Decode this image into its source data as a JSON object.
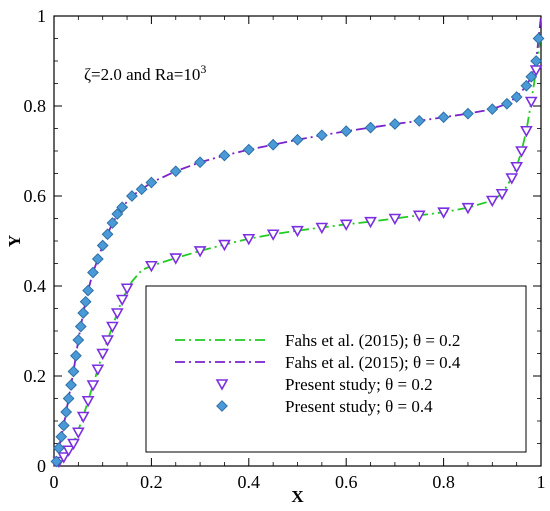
{
  "chart_data": {
    "type": "line",
    "annotation": {
      "prefix": "ζ=2.0 and Ra=10",
      "exponent": "3"
    },
    "xlabel": "X",
    "ylabel": "Y",
    "xlim": [
      0,
      1
    ],
    "ylim": [
      0,
      1
    ],
    "xticks": [
      0,
      0.2,
      0.4,
      0.6,
      0.8,
      1
    ],
    "xtick_labels": [
      "0",
      "0.2",
      "0.4",
      "0.6",
      "0.8",
      "1"
    ],
    "yticks": [
      0,
      0.2,
      0.4,
      0.6,
      0.8,
      1
    ],
    "ytick_labels": [
      "0",
      "0.2",
      "0.4",
      "0.6",
      "0.8",
      "1"
    ],
    "grid": false,
    "legend_position": "lower-right",
    "series": [
      {
        "name": "Fahs et al. (2015); θ = 0.2",
        "kind": "line",
        "line_style": "dash-dot",
        "color": "#22cc22",
        "points": [
          [
            0.0,
            0.0
          ],
          [
            0.02,
            0.02
          ],
          [
            0.04,
            0.05
          ],
          [
            0.06,
            0.11
          ],
          [
            0.08,
            0.18
          ],
          [
            0.1,
            0.25
          ],
          [
            0.12,
            0.31
          ],
          [
            0.14,
            0.37
          ],
          [
            0.16,
            0.41
          ],
          [
            0.18,
            0.435
          ],
          [
            0.2,
            0.445
          ],
          [
            0.25,
            0.462
          ],
          [
            0.3,
            0.478
          ],
          [
            0.35,
            0.492
          ],
          [
            0.4,
            0.505
          ],
          [
            0.45,
            0.515
          ],
          [
            0.5,
            0.523
          ],
          [
            0.55,
            0.53
          ],
          [
            0.6,
            0.537
          ],
          [
            0.65,
            0.543
          ],
          [
            0.7,
            0.55
          ],
          [
            0.75,
            0.557
          ],
          [
            0.8,
            0.564
          ],
          [
            0.85,
            0.574
          ],
          [
            0.9,
            0.59
          ],
          [
            0.92,
            0.605
          ],
          [
            0.94,
            0.64
          ],
          [
            0.95,
            0.665
          ],
          [
            0.96,
            0.7
          ],
          [
            0.97,
            0.745
          ],
          [
            0.98,
            0.81
          ],
          [
            0.99,
            0.88
          ],
          [
            1.0,
            0.96
          ]
        ]
      },
      {
        "name": "Fahs et al. (2015); θ = 0.4",
        "kind": "line",
        "line_style": "dash-dot",
        "color": "#7a22cc",
        "points": [
          [
            0.0,
            0.0
          ],
          [
            0.01,
            0.04
          ],
          [
            0.02,
            0.09
          ],
          [
            0.03,
            0.15
          ],
          [
            0.04,
            0.21
          ],
          [
            0.05,
            0.28
          ],
          [
            0.06,
            0.34
          ],
          [
            0.07,
            0.39
          ],
          [
            0.08,
            0.43
          ],
          [
            0.1,
            0.49
          ],
          [
            0.12,
            0.54
          ],
          [
            0.14,
            0.575
          ],
          [
            0.16,
            0.6
          ],
          [
            0.18,
            0.615
          ],
          [
            0.2,
            0.63
          ],
          [
            0.25,
            0.655
          ],
          [
            0.3,
            0.675
          ],
          [
            0.35,
            0.69
          ],
          [
            0.4,
            0.703
          ],
          [
            0.45,
            0.714
          ],
          [
            0.5,
            0.725
          ],
          [
            0.55,
            0.735
          ],
          [
            0.6,
            0.744
          ],
          [
            0.65,
            0.752
          ],
          [
            0.7,
            0.76
          ],
          [
            0.75,
            0.767
          ],
          [
            0.8,
            0.775
          ],
          [
            0.85,
            0.783
          ],
          [
            0.9,
            0.793
          ],
          [
            0.93,
            0.805
          ],
          [
            0.95,
            0.82
          ],
          [
            0.97,
            0.845
          ],
          [
            0.98,
            0.865
          ],
          [
            0.99,
            0.9
          ],
          [
            1.0,
            1.0
          ]
        ]
      },
      {
        "name": "Present study; θ = 0.2",
        "kind": "scatter",
        "marker": "triangle-down",
        "color": "#7b2fe0",
        "points": [
          [
            0.01,
            0.01
          ],
          [
            0.02,
            0.02
          ],
          [
            0.03,
            0.035
          ],
          [
            0.04,
            0.05
          ],
          [
            0.05,
            0.075
          ],
          [
            0.06,
            0.11
          ],
          [
            0.07,
            0.145
          ],
          [
            0.08,
            0.18
          ],
          [
            0.09,
            0.215
          ],
          [
            0.1,
            0.25
          ],
          [
            0.11,
            0.28
          ],
          [
            0.12,
            0.31
          ],
          [
            0.13,
            0.34
          ],
          [
            0.14,
            0.37
          ],
          [
            0.15,
            0.395
          ],
          [
            0.2,
            0.445
          ],
          [
            0.25,
            0.462
          ],
          [
            0.3,
            0.478
          ],
          [
            0.35,
            0.492
          ],
          [
            0.4,
            0.505
          ],
          [
            0.45,
            0.515
          ],
          [
            0.5,
            0.523
          ],
          [
            0.55,
            0.53
          ],
          [
            0.6,
            0.537
          ],
          [
            0.65,
            0.543
          ],
          [
            0.7,
            0.55
          ],
          [
            0.75,
            0.557
          ],
          [
            0.8,
            0.564
          ],
          [
            0.85,
            0.574
          ],
          [
            0.9,
            0.59
          ],
          [
            0.92,
            0.605
          ],
          [
            0.94,
            0.64
          ],
          [
            0.95,
            0.665
          ],
          [
            0.96,
            0.7
          ],
          [
            0.97,
            0.745
          ],
          [
            0.98,
            0.81
          ],
          [
            0.99,
            0.88
          ]
        ]
      },
      {
        "name": "Present study; θ = 0.4",
        "kind": "scatter",
        "marker": "diamond",
        "color": "#4a9ad8",
        "points": [
          [
            0.005,
            0.01
          ],
          [
            0.01,
            0.04
          ],
          [
            0.015,
            0.065
          ],
          [
            0.02,
            0.09
          ],
          [
            0.025,
            0.12
          ],
          [
            0.03,
            0.15
          ],
          [
            0.035,
            0.18
          ],
          [
            0.04,
            0.21
          ],
          [
            0.045,
            0.245
          ],
          [
            0.05,
            0.28
          ],
          [
            0.055,
            0.31
          ],
          [
            0.06,
            0.34
          ],
          [
            0.065,
            0.365
          ],
          [
            0.07,
            0.39
          ],
          [
            0.08,
            0.43
          ],
          [
            0.09,
            0.46
          ],
          [
            0.1,
            0.49
          ],
          [
            0.11,
            0.515
          ],
          [
            0.12,
            0.54
          ],
          [
            0.13,
            0.56
          ],
          [
            0.14,
            0.575
          ],
          [
            0.16,
            0.6
          ],
          [
            0.18,
            0.615
          ],
          [
            0.2,
            0.63
          ],
          [
            0.25,
            0.655
          ],
          [
            0.3,
            0.675
          ],
          [
            0.35,
            0.69
          ],
          [
            0.4,
            0.703
          ],
          [
            0.45,
            0.714
          ],
          [
            0.5,
            0.725
          ],
          [
            0.55,
            0.735
          ],
          [
            0.6,
            0.744
          ],
          [
            0.65,
            0.752
          ],
          [
            0.7,
            0.76
          ],
          [
            0.75,
            0.767
          ],
          [
            0.8,
            0.775
          ],
          [
            0.85,
            0.783
          ],
          [
            0.9,
            0.793
          ],
          [
            0.93,
            0.805
          ],
          [
            0.95,
            0.82
          ],
          [
            0.97,
            0.845
          ],
          [
            0.98,
            0.865
          ],
          [
            0.99,
            0.9
          ],
          [
            0.995,
            0.95
          ]
        ]
      }
    ]
  }
}
